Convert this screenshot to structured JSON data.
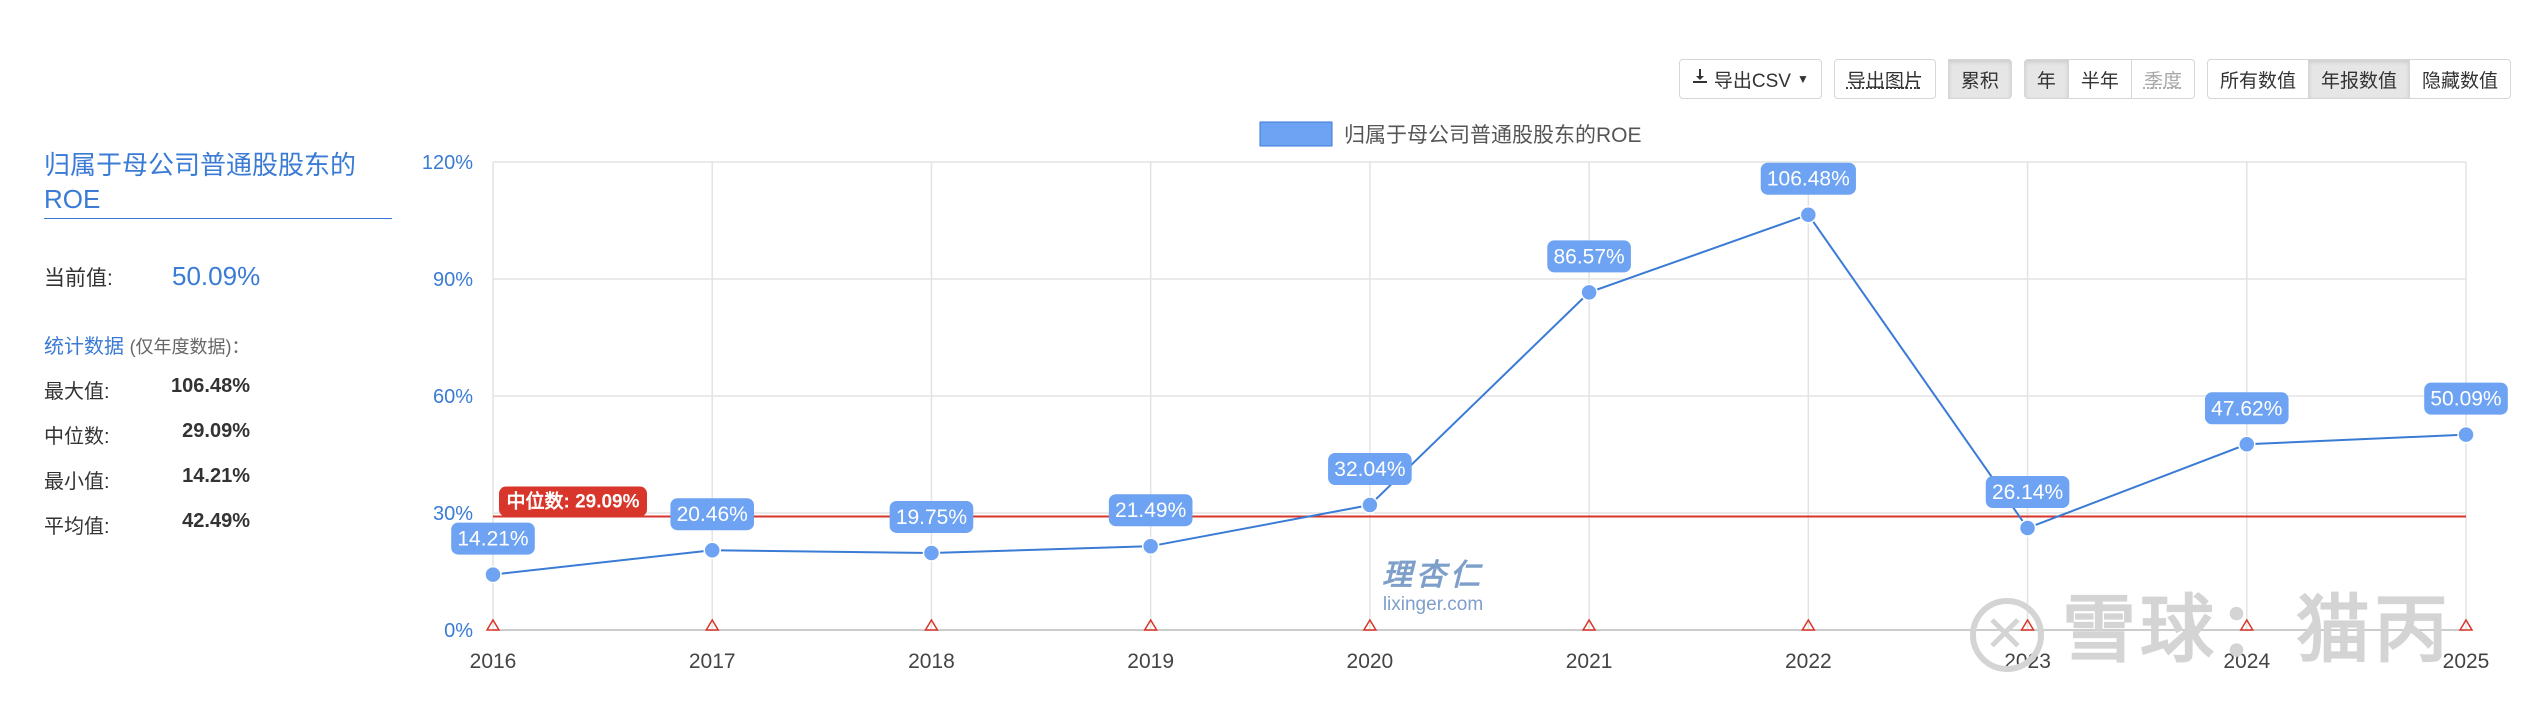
{
  "toolbar": {
    "csv": "导出CSV",
    "image": "导出图片",
    "cumulative": "累积",
    "period": [
      "年",
      "半年",
      "季度"
    ],
    "values": [
      "所有数值",
      "年报数值",
      "隐藏数值"
    ]
  },
  "side": {
    "title": "归属于母公司普通股股东的ROE",
    "current_label": "当前值:",
    "current_value": "50.09%",
    "stats_link": "统计数据",
    "stats_note": "(仅年度数据)：",
    "stats": [
      {
        "label": "最大值:",
        "value": "106.48%"
      },
      {
        "label": "中位数:",
        "value": "29.09%"
      },
      {
        "label": "最小值:",
        "value": "14.21%"
      },
      {
        "label": "平均值:",
        "value": "42.49%"
      }
    ]
  },
  "watermarks": {
    "lixinger_cn": "理杏仁",
    "lixinger_en": "lixinger.com",
    "xueqiu": "雪球：猫丙"
  },
  "colors": {
    "line": "#3a7bd5",
    "point": "#6da3f2",
    "median": "#d9362b",
    "accent": "#3a7bd5"
  },
  "chart_data": {
    "type": "line",
    "categories": [
      "2016",
      "2017",
      "2018",
      "2019",
      "2020",
      "2021",
      "2022",
      "2023",
      "2024",
      "2025"
    ],
    "series": [
      {
        "name": "归属于母公司普通股股东的ROE",
        "values": [
          14.21,
          20.46,
          19.75,
          21.49,
          32.04,
          86.57,
          106.48,
          26.14,
          47.62,
          50.09
        ],
        "labels": [
          "14.21%",
          "20.46%",
          "19.75%",
          "21.49%",
          "32.04%",
          "86.57%",
          "106.48%",
          "26.14%",
          "47.62%",
          "50.09%"
        ]
      }
    ],
    "median": {
      "value": 29.09,
      "label": "中位数: 29.09%"
    },
    "ylim": [
      0,
      120
    ],
    "yticks": [
      "0%",
      "30%",
      "60%",
      "90%",
      "120%"
    ],
    "grid": true,
    "legend": "top-center"
  }
}
